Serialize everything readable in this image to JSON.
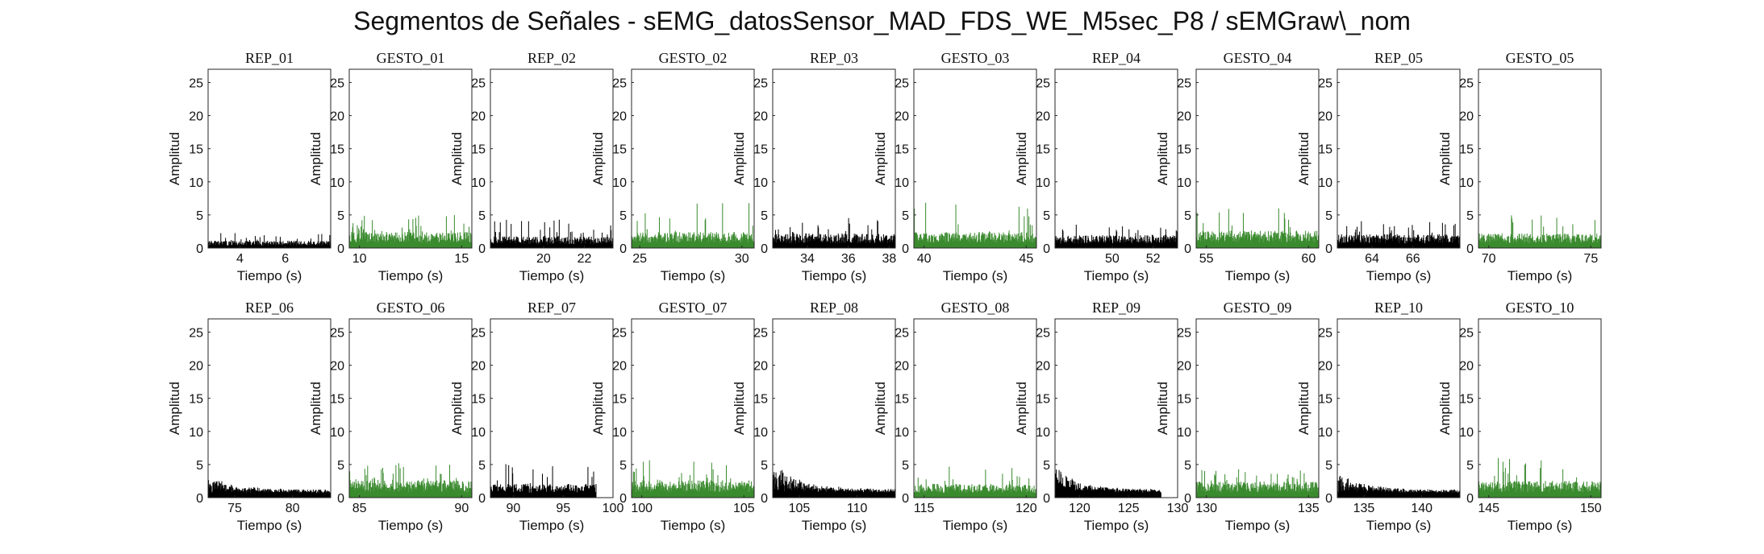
{
  "figure": {
    "title": "Segmentos de Señales - sEMG_datosSensor_MAD_FDS_WE_M5sec_P8 / sEMGraw\\_nom"
  },
  "colors": {
    "rep": "#000000",
    "gesto": "#3a8a2e",
    "axis": "#262626"
  },
  "chart_data": [
    {
      "type": "area",
      "title": "REP_01",
      "kind": "rep",
      "xlabel": "Tiempo (s)",
      "ylabel": "Amplitud",
      "xlim": [
        2.6,
        8.0
      ],
      "ylim": [
        0,
        27
      ],
      "xticks": [
        4,
        6
      ],
      "yticks": [
        0,
        5,
        10,
        15,
        20,
        25
      ],
      "data_range": [
        2.6,
        8.0
      ],
      "envelope": {
        "base": 1.0,
        "peak": 2.3
      }
    },
    {
      "type": "area",
      "title": "GESTO_01",
      "kind": "gesto",
      "xlabel": "Tiempo (s)",
      "ylabel": "Amplitud",
      "xlim": [
        9.5,
        15.5
      ],
      "ylim": [
        0,
        27
      ],
      "xticks": [
        10,
        15
      ],
      "yticks": [
        0,
        5,
        10,
        15,
        20,
        25
      ],
      "data_range": [
        9.5,
        15.5
      ],
      "envelope": {
        "base": 2.2,
        "peak": 5.0
      }
    },
    {
      "type": "area",
      "title": "REP_02",
      "kind": "rep",
      "xlabel": "Tiempo (s)",
      "ylabel": "Amplitud",
      "xlim": [
        17.4,
        23.4
      ],
      "ylim": [
        0,
        27
      ],
      "xticks": [
        20,
        22
      ],
      "yticks": [
        0,
        5,
        10,
        15,
        20,
        25
      ],
      "data_range": [
        17.4,
        23.4
      ],
      "envelope": {
        "base": 1.6,
        "peak": 4.3
      }
    },
    {
      "type": "area",
      "title": "GESTO_02",
      "kind": "gesto",
      "xlabel": "Tiempo (s)",
      "ylabel": "Amplitud",
      "xlim": [
        24.6,
        30.6
      ],
      "ylim": [
        0,
        27
      ],
      "xticks": [
        25,
        30
      ],
      "yticks": [
        0,
        5,
        10,
        15,
        20,
        25
      ],
      "data_range": [
        24.6,
        30.6
      ],
      "envelope": {
        "base": 2.2,
        "peak": 6.9
      }
    },
    {
      "type": "area",
      "title": "REP_03",
      "kind": "rep",
      "xlabel": "Tiempo (s)",
      "ylabel": "Amplitud",
      "xlim": [
        32.3,
        38.3
      ],
      "ylim": [
        0,
        27
      ],
      "xticks": [
        34,
        36,
        38
      ],
      "yticks": [
        0,
        5,
        10,
        15,
        20,
        25
      ],
      "data_range": [
        32.3,
        38.3
      ],
      "envelope": {
        "base": 2.0,
        "peak": 4.6
      }
    },
    {
      "type": "area",
      "title": "GESTO_03",
      "kind": "gesto",
      "xlabel": "Tiempo (s)",
      "ylabel": "Amplitud",
      "xlim": [
        39.5,
        45.5
      ],
      "ylim": [
        0,
        27
      ],
      "xticks": [
        40,
        45
      ],
      "yticks": [
        0,
        5,
        10,
        15,
        20,
        25
      ],
      "data_range": [
        39.5,
        45.5
      ],
      "envelope": {
        "base": 2.2,
        "peak": 7.3
      }
    },
    {
      "type": "area",
      "title": "REP_04",
      "kind": "rep",
      "xlabel": "Tiempo (s)",
      "ylabel": "Amplitud",
      "xlim": [
        47.2,
        53.2
      ],
      "ylim": [
        0,
        27
      ],
      "xticks": [
        50,
        52
      ],
      "yticks": [
        0,
        5,
        10,
        15,
        20,
        25
      ],
      "data_range": [
        47.2,
        53.2
      ],
      "envelope": {
        "base": 1.8,
        "peak": 3.6
      }
    },
    {
      "type": "area",
      "title": "GESTO_04",
      "kind": "gesto",
      "xlabel": "Tiempo (s)",
      "ylabel": "Amplitud",
      "xlim": [
        54.5,
        60.5
      ],
      "ylim": [
        0,
        27
      ],
      "xticks": [
        55,
        60
      ],
      "yticks": [
        0,
        5,
        10,
        15,
        20,
        25
      ],
      "data_range": [
        54.5,
        60.5
      ],
      "envelope": {
        "base": 2.4,
        "peak": 6.0
      }
    },
    {
      "type": "area",
      "title": "REP_05",
      "kind": "rep",
      "xlabel": "Tiempo (s)",
      "ylabel": "Amplitud",
      "xlim": [
        62.3,
        68.3
      ],
      "ylim": [
        0,
        27
      ],
      "xticks": [
        64,
        66
      ],
      "yticks": [
        0,
        5,
        10,
        15,
        20,
        25
      ],
      "data_range": [
        62.3,
        68.3
      ],
      "envelope": {
        "base": 1.9,
        "peak": 4.3
      }
    },
    {
      "type": "area",
      "title": "GESTO_05",
      "kind": "gesto",
      "xlabel": "Tiempo (s)",
      "ylabel": "Amplitud",
      "xlim": [
        69.5,
        75.5
      ],
      "ylim": [
        0,
        27
      ],
      "xticks": [
        70,
        75
      ],
      "yticks": [
        0,
        5,
        10,
        15,
        20,
        25
      ],
      "data_range": [
        69.5,
        75.5
      ],
      "envelope": {
        "base": 2.0,
        "peak": 5.0
      }
    },
    {
      "type": "area",
      "title": "REP_06",
      "kind": "rep",
      "xlabel": "Tiempo (s)",
      "ylabel": "Amplitud",
      "xlim": [
        72.7,
        83.3
      ],
      "ylim": [
        0,
        27
      ],
      "xticks": [
        75,
        80
      ],
      "yticks": [
        0,
        5,
        10,
        15,
        20,
        25
      ],
      "data_range": [
        72.7,
        83.3
      ],
      "envelope": {
        "base": 1.2,
        "peak": 3.5,
        "shape": "decay"
      }
    },
    {
      "type": "area",
      "title": "GESTO_06",
      "kind": "gesto",
      "xlabel": "Tiempo (s)",
      "ylabel": "Amplitud",
      "xlim": [
        84.5,
        90.5
      ],
      "ylim": [
        0,
        27
      ],
      "xticks": [
        85,
        90
      ],
      "yticks": [
        0,
        5,
        10,
        15,
        20,
        25
      ],
      "data_range": [
        84.5,
        90.5
      ],
      "envelope": {
        "base": 2.4,
        "peak": 5.2
      }
    },
    {
      "type": "area",
      "title": "REP_07",
      "kind": "rep",
      "xlabel": "Tiempo (s)",
      "ylabel": "Amplitud",
      "xlim": [
        87.7,
        100.0
      ],
      "ylim": [
        0,
        27
      ],
      "xticks": [
        90,
        95,
        100
      ],
      "yticks": [
        0,
        5,
        10,
        15,
        20,
        25
      ],
      "data_range": [
        87.7,
        98.3
      ],
      "envelope": {
        "base": 1.9,
        "peak": 5.2
      }
    },
    {
      "type": "area",
      "title": "GESTO_07",
      "kind": "gesto",
      "xlabel": "Tiempo (s)",
      "ylabel": "Amplitud",
      "xlim": [
        99.5,
        105.5
      ],
      "ylim": [
        0,
        27
      ],
      "xticks": [
        100,
        105
      ],
      "yticks": [
        0,
        5,
        10,
        15,
        20,
        25
      ],
      "data_range": [
        99.5,
        105.5
      ],
      "envelope": {
        "base": 2.4,
        "peak": 5.7
      }
    },
    {
      "type": "area",
      "title": "REP_08",
      "kind": "rep",
      "xlabel": "Tiempo (s)",
      "ylabel": "Amplitud",
      "xlim": [
        102.7,
        113.3
      ],
      "ylim": [
        0,
        27
      ],
      "xticks": [
        105,
        110
      ],
      "yticks": [
        0,
        5,
        10,
        15,
        20,
        25
      ],
      "data_range": [
        102.7,
        113.3
      ],
      "envelope": {
        "base": 1.3,
        "peak": 5.5,
        "shape": "decay"
      }
    },
    {
      "type": "area",
      "title": "GESTO_08",
      "kind": "gesto",
      "xlabel": "Tiempo (s)",
      "ylabel": "Amplitud",
      "xlim": [
        114.5,
        120.5
      ],
      "ylim": [
        0,
        27
      ],
      "xticks": [
        115,
        120
      ],
      "yticks": [
        0,
        5,
        10,
        15,
        20,
        25
      ],
      "data_range": [
        114.5,
        120.5
      ],
      "envelope": {
        "base": 1.9,
        "peak": 4.8
      }
    },
    {
      "type": "area",
      "title": "REP_09",
      "kind": "rep",
      "xlabel": "Tiempo (s)",
      "ylabel": "Amplitud",
      "xlim": [
        117.5,
        130.0
      ],
      "ylim": [
        0,
        27
      ],
      "xticks": [
        120,
        125,
        130
      ],
      "yticks": [
        0,
        5,
        10,
        15,
        20,
        25
      ],
      "data_range": [
        117.5,
        128.3
      ],
      "envelope": {
        "base": 1.3,
        "peak": 5.0,
        "shape": "decay"
      }
    },
    {
      "type": "area",
      "title": "GESTO_09",
      "kind": "gesto",
      "xlabel": "Tiempo (s)",
      "ylabel": "Amplitud",
      "xlim": [
        129.5,
        135.5
      ],
      "ylim": [
        0,
        27
      ],
      "xticks": [
        130,
        135
      ],
      "yticks": [
        0,
        5,
        10,
        15,
        20,
        25
      ],
      "data_range": [
        129.5,
        135.5
      ],
      "envelope": {
        "base": 2.2,
        "peak": 4.3
      }
    },
    {
      "type": "area",
      "title": "REP_10",
      "kind": "rep",
      "xlabel": "Tiempo (s)",
      "ylabel": "Amplitud",
      "xlim": [
        132.7,
        143.3
      ],
      "ylim": [
        0,
        27
      ],
      "xticks": [
        135,
        140
      ],
      "yticks": [
        0,
        5,
        10,
        15,
        20,
        25
      ],
      "data_range": [
        132.7,
        143.3
      ],
      "envelope": {
        "base": 1.2,
        "peak": 4.1,
        "shape": "decay"
      }
    },
    {
      "type": "area",
      "title": "GESTO_10",
      "kind": "gesto",
      "xlabel": "Tiempo (s)",
      "ylabel": "Amplitud",
      "xlim": [
        144.5,
        150.5
      ],
      "ylim": [
        0,
        27
      ],
      "xticks": [
        145,
        150
      ],
      "yticks": [
        0,
        5,
        10,
        15,
        20,
        25
      ],
      "data_range": [
        144.5,
        150.5
      ],
      "envelope": {
        "base": 2.3,
        "peak": 6.1
      }
    }
  ]
}
